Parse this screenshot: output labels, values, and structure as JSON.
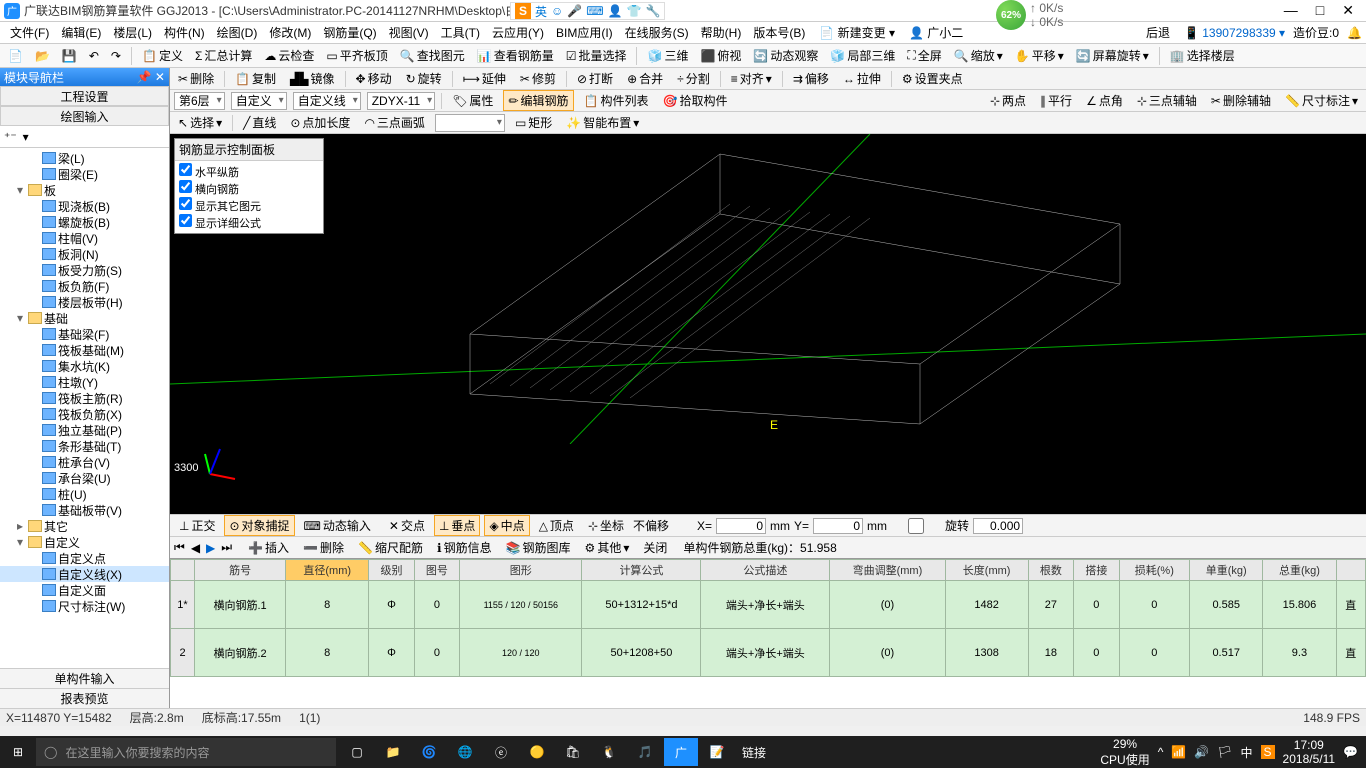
{
  "title": "广联达BIM钢筋算量软件 GGJ2013 - [C:\\Users\\Administrator.PC-20141127NRHM\\Desktop\\白龙村-2018-02-02-19-24-35",
  "ime": {
    "letter": "S",
    "lang": "英"
  },
  "perf": {
    "pct": "62%",
    "up": "0K/s",
    "down": "0K/s"
  },
  "menus": [
    "文件(F)",
    "编辑(E)",
    "楼层(L)",
    "构件(N)",
    "绘图(D)",
    "修改(M)",
    "钢筋量(Q)",
    "视图(V)",
    "工具(T)",
    "云应用(Y)",
    "BIM应用(I)",
    "在线服务(S)",
    "帮助(H)",
    "版本号(B)"
  ],
  "menu_right": {
    "new": "新建变更",
    "user": "广小二",
    "back": "后退",
    "phone": "13907298339",
    "credit": "造价豆:0"
  },
  "tb1": {
    "define": "定义",
    "sum": "汇总计算",
    "cloud": "云检查",
    "flat": "平齐板顶",
    "find": "查找图元",
    "viewbar": "查看钢筋量",
    "batch": "批量选择",
    "three": "三维",
    "over": "俯视",
    "dyn": "动态观察",
    "local": "局部三维",
    "full": "全屏",
    "zoom": "缩放",
    "pan": "平移",
    "rot": "屏幕旋转",
    "selfloor": "选择楼层"
  },
  "tb2": {
    "del": "删除",
    "copy": "复制",
    "mirror": "镜像",
    "move": "移动",
    "rotate": "旋转",
    "extend": "延伸",
    "trim": "修剪",
    "break": "打断",
    "merge": "合并",
    "split": "分割",
    "align": "对齐",
    "offset": "偏移",
    "stretch": "拉伸",
    "grip": "设置夹点"
  },
  "tb3": {
    "floor": "第6层",
    "cat": "自定义",
    "type": "自定义线",
    "name": "ZDYX-11",
    "prop": "属性",
    "edit": "编辑钢筋",
    "list": "构件列表",
    "pick": "拾取构件",
    "two": "两点",
    "para": "平行",
    "ang": "点角",
    "aux3": "三点辅轴",
    "delaux": "删除辅轴",
    "dim": "尺寸标注"
  },
  "tb4": {
    "select": "选择",
    "line": "直线",
    "ptlen": "点加长度",
    "arc3": "三点画弧",
    "rect": "矩形",
    "smart": "智能布置"
  },
  "panel": {
    "title": "钢筋显示控制面板",
    "items": [
      "水平纵筋",
      "横向钢筋",
      "显示其它图元",
      "显示详细公式"
    ]
  },
  "axis_label": "3300",
  "snap": {
    "ortho": "正交",
    "osnap": "对象捕捉",
    "dyninp": "动态输入",
    "int": "交点",
    "perp": "垂点",
    "mid": "中点",
    "end": "顶点",
    "coord": "坐标",
    "noofs": "不偏移",
    "x": "X=",
    "xv": "0",
    "xm": "mm",
    "y": "Y=",
    "yv": "0",
    "ym": "mm",
    "rot": "旋转",
    "rv": "0.000"
  },
  "info": {
    "insert": "插入",
    "del": "删除",
    "scale": "缩尺配筋",
    "barinfo": "钢筋信息",
    "barlib": "钢筋图库",
    "other": "其他",
    "close": "关闭",
    "totallbl": "单构件钢筋总重(kg)：",
    "total": "51.958"
  },
  "grid": {
    "cols": [
      "",
      "筋号",
      "直径(mm)",
      "级别",
      "图号",
      "图形",
      "计算公式",
      "公式描述",
      "弯曲调整(mm)",
      "长度(mm)",
      "根数",
      "搭接",
      "损耗(%)",
      "单重(kg)",
      "总重(kg)",
      ""
    ],
    "hlcol": 2,
    "rows": [
      {
        "n": "1*",
        "name": "横向钢筋.1",
        "dia": "8",
        "lv": "Φ",
        "fig": "0",
        "shape": "1155 / 120 / 50156",
        "formula": "50+1312+15*d",
        "desc": "端头+净长+端头",
        "bend": "(0)",
        "len": "1482",
        "cnt": "27",
        "lap": "0",
        "loss": "0",
        "uw": "0.585",
        "tw": "15.806",
        "ext": "直"
      },
      {
        "n": "2",
        "name": "横向钢筋.2",
        "dia": "8",
        "lv": "Φ",
        "fig": "0",
        "shape": "120 / 120",
        "formula": "50+1208+50",
        "desc": "端头+净长+端头",
        "bend": "(0)",
        "len": "1308",
        "cnt": "18",
        "lap": "0",
        "loss": "0",
        "uw": "0.517",
        "tw": "9.3",
        "ext": "直"
      }
    ]
  },
  "sidebar": {
    "hdr": "模块导航栏",
    "tabs": [
      "工程设置",
      "绘图输入"
    ],
    "bots": [
      "单构件输入",
      "报表预览"
    ],
    "tree": [
      {
        "d": 2,
        "e": "",
        "i": "item",
        "t": "梁(L)"
      },
      {
        "d": 2,
        "e": "",
        "i": "item",
        "t": "圈梁(E)"
      },
      {
        "d": 1,
        "e": "▾",
        "i": "folder",
        "t": "板"
      },
      {
        "d": 2,
        "e": "",
        "i": "item",
        "t": "现浇板(B)"
      },
      {
        "d": 2,
        "e": "",
        "i": "item",
        "t": "螺旋板(B)"
      },
      {
        "d": 2,
        "e": "",
        "i": "item",
        "t": "柱帽(V)"
      },
      {
        "d": 2,
        "e": "",
        "i": "item",
        "t": "板洞(N)"
      },
      {
        "d": 2,
        "e": "",
        "i": "item",
        "t": "板受力筋(S)"
      },
      {
        "d": 2,
        "e": "",
        "i": "item",
        "t": "板负筋(F)"
      },
      {
        "d": 2,
        "e": "",
        "i": "item",
        "t": "楼层板带(H)"
      },
      {
        "d": 1,
        "e": "▾",
        "i": "folder",
        "t": "基础"
      },
      {
        "d": 2,
        "e": "",
        "i": "item",
        "t": "基础梁(F)"
      },
      {
        "d": 2,
        "e": "",
        "i": "item",
        "t": "筏板基础(M)"
      },
      {
        "d": 2,
        "e": "",
        "i": "item",
        "t": "集水坑(K)"
      },
      {
        "d": 2,
        "e": "",
        "i": "item",
        "t": "柱墩(Y)"
      },
      {
        "d": 2,
        "e": "",
        "i": "item",
        "t": "筏板主筋(R)"
      },
      {
        "d": 2,
        "e": "",
        "i": "item",
        "t": "筏板负筋(X)"
      },
      {
        "d": 2,
        "e": "",
        "i": "item",
        "t": "独立基础(P)"
      },
      {
        "d": 2,
        "e": "",
        "i": "item",
        "t": "条形基础(T)"
      },
      {
        "d": 2,
        "e": "",
        "i": "item",
        "t": "桩承台(V)"
      },
      {
        "d": 2,
        "e": "",
        "i": "item",
        "t": "承台梁(U)"
      },
      {
        "d": 2,
        "e": "",
        "i": "item",
        "t": "桩(U)"
      },
      {
        "d": 2,
        "e": "",
        "i": "item",
        "t": "基础板带(V)"
      },
      {
        "d": 1,
        "e": "▸",
        "i": "folder",
        "t": "其它"
      },
      {
        "d": 1,
        "e": "▾",
        "i": "folder",
        "t": "自定义"
      },
      {
        "d": 2,
        "e": "",
        "i": "item",
        "t": "自定义点"
      },
      {
        "d": 2,
        "e": "",
        "i": "item",
        "t": "自定义线(X)",
        "sel": true
      },
      {
        "d": 2,
        "e": "",
        "i": "item",
        "t": "自定义面"
      },
      {
        "d": 2,
        "e": "",
        "i": "item",
        "t": "尺寸标注(W)"
      }
    ]
  },
  "status": {
    "xy": "X=114870 Y=15482",
    "floor": "层高:2.8m",
    "elev": "底标高:17.55m",
    "sel": "1(1)",
    "fps": "148.9 FPS"
  },
  "taskbar": {
    "search": "在这里输入你要搜索的内容",
    "link": "链接",
    "cpu": "29%",
    "cpulbl": "CPU使用",
    "time": "17:09",
    "date": "2018/5/11",
    "lang": "中"
  },
  "colors": {
    "accent": "#1e90ff",
    "hl": "#ffcc66",
    "gridbg": "#d4f0d4",
    "active": "#ffe9c6"
  }
}
